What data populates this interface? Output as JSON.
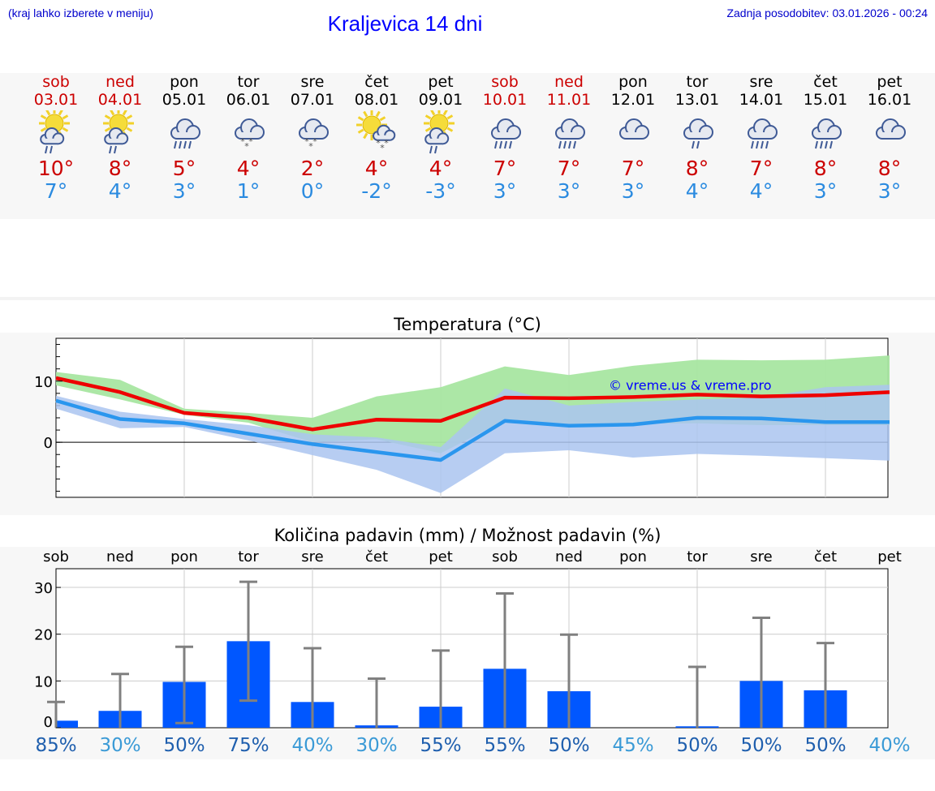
{
  "header": {
    "hint": "(kraj lahko izberete v meniju)",
    "title": "Kraljevica 14 dni",
    "updated": "Zadnja posodobitev: 03.01.2026 - 00:24"
  },
  "days": [
    {
      "name": "sob",
      "date": "03.01",
      "weekend": true,
      "icon": "sun-cloud-rain-icon",
      "max": "10°",
      "min": "7°"
    },
    {
      "name": "ned",
      "date": "04.01",
      "weekend": true,
      "icon": "sun-cloud-rain-icon",
      "max": "8°",
      "min": "4°"
    },
    {
      "name": "pon",
      "date": "05.01",
      "weekend": false,
      "icon": "cloud-heavy-rain-icon",
      "max": "5°",
      "min": "3°"
    },
    {
      "name": "tor",
      "date": "06.01",
      "weekend": false,
      "icon": "cloud-sleet-icon",
      "max": "4°",
      "min": "1°"
    },
    {
      "name": "sre",
      "date": "07.01",
      "weekend": false,
      "icon": "cloud-sleet-icon",
      "max": "2°",
      "min": "0°"
    },
    {
      "name": "čet",
      "date": "08.01",
      "weekend": false,
      "icon": "sun-cloud-snow-icon",
      "max": "4°",
      "min": "-2°"
    },
    {
      "name": "pet",
      "date": "09.01",
      "weekend": false,
      "icon": "sun-cloud-rain-icon",
      "max": "4°",
      "min": "-3°"
    },
    {
      "name": "sob",
      "date": "10.01",
      "weekend": true,
      "icon": "cloud-heavy-rain-icon",
      "max": "7°",
      "min": "3°"
    },
    {
      "name": "ned",
      "date": "11.01",
      "weekend": true,
      "icon": "cloud-heavy-rain-icon",
      "max": "7°",
      "min": "3°"
    },
    {
      "name": "pon",
      "date": "12.01",
      "weekend": false,
      "icon": "cloud-icon",
      "max": "7°",
      "min": "3°"
    },
    {
      "name": "tor",
      "date": "13.01",
      "weekend": false,
      "icon": "cloud-rain-icon",
      "max": "8°",
      "min": "4°"
    },
    {
      "name": "sre",
      "date": "14.01",
      "weekend": false,
      "icon": "cloud-heavy-rain-icon",
      "max": "7°",
      "min": "4°"
    },
    {
      "name": "čet",
      "date": "15.01",
      "weekend": false,
      "icon": "cloud-heavy-rain-icon",
      "max": "8°",
      "min": "3°"
    },
    {
      "name": "pet",
      "date": "16.01",
      "weekend": false,
      "icon": "cloud-icon",
      "max": "8°",
      "min": "3°"
    }
  ],
  "colors": {
    "weekend": "#cc0000",
    "weekday": "#000000",
    "tmax_line": "#ee0000",
    "tmin_line": "#2a96ee",
    "tmax_band": "#a8e6a1",
    "tmin_band": "#aac4f0",
    "bar": "#0057ff",
    "error_bar": "#808080",
    "prob_high": "#1f5fae",
    "prob_low": "#3a9ad6"
  },
  "chart_data": [
    {
      "type": "line",
      "title": "Temperatura (°C)",
      "watermark": "© vreme.us & vreme.pro",
      "x": [
        0,
        1,
        2,
        3,
        4,
        5,
        6,
        7,
        8,
        9,
        10,
        11,
        12,
        13
      ],
      "ylim": [
        -9,
        17
      ],
      "yticks": [
        0,
        10
      ],
      "series": [
        {
          "name": "tmax",
          "values": [
            10.5,
            8.2,
            4.8,
            4.0,
            2.1,
            3.7,
            3.5,
            7.3,
            7.2,
            7.4,
            7.8,
            7.5,
            7.7,
            8.2
          ]
        },
        {
          "name": "tmin",
          "values": [
            6.8,
            3.8,
            3.1,
            1.4,
            -0.3,
            -1.6,
            -2.9,
            3.5,
            2.7,
            2.9,
            4.0,
            3.9,
            3.3,
            3.3
          ]
        }
      ],
      "bands": [
        {
          "name": "tmax_range",
          "upper": [
            11.5,
            10.2,
            5.5,
            4.8,
            4.0,
            7.5,
            9.0,
            12.4,
            11.0,
            12.5,
            13.5,
            13.4,
            13.5,
            14.2
          ],
          "lower": [
            9.3,
            7.0,
            4.5,
            3.2,
            0.0,
            0.5,
            -1.8,
            3.6,
            3.0,
            3.0,
            3.1,
            2.8,
            2.8,
            2.8
          ]
        },
        {
          "name": "tmin_range",
          "upper": [
            7.6,
            5.0,
            3.8,
            2.8,
            1.3,
            0.8,
            -0.8,
            8.8,
            6.0,
            6.6,
            7.0,
            7.3,
            9.0,
            9.4
          ]
        },
        {
          "name": "tmin_lower",
          "lower": [
            5.5,
            2.3,
            2.5,
            0.3,
            -2.1,
            -4.5,
            -8.3,
            -1.8,
            -1.3,
            -2.5,
            -1.9,
            -2.2,
            -2.6,
            -3.0
          ]
        }
      ]
    },
    {
      "type": "bar",
      "title": "Količina padavin (mm) / Možnost padavin (%)",
      "categories": [
        "sob",
        "ned",
        "pon",
        "tor",
        "sre",
        "čet",
        "pet",
        "sob",
        "ned",
        "pon",
        "tor",
        "sre",
        "čet",
        "pet"
      ],
      "values": [
        1.5,
        3.6,
        9.8,
        18.5,
        5.5,
        0.5,
        4.5,
        12.6,
        7.8,
        0.0,
        0.3,
        10.0,
        8.0,
        0.0
      ],
      "error_high": [
        5.5,
        11.5,
        17.3,
        31.2,
        17.0,
        10.5,
        16.5,
        28.7,
        19.9,
        0.0,
        13.0,
        23.5,
        18.1,
        0.0
      ],
      "error_low": [
        0.0,
        0.0,
        1.0,
        5.8,
        0.0,
        0.0,
        0.0,
        0.0,
        0.0,
        0.0,
        0.0,
        0.0,
        0.0,
        0.0
      ],
      "probabilities": [
        "85%",
        "30%",
        "50%",
        "75%",
        "40%",
        "30%",
        "55%",
        "55%",
        "50%",
        "45%",
        "50%",
        "50%",
        "50%",
        "40%"
      ],
      "ylim": [
        0,
        34
      ],
      "yticks": [
        0,
        10,
        20,
        30
      ]
    }
  ]
}
